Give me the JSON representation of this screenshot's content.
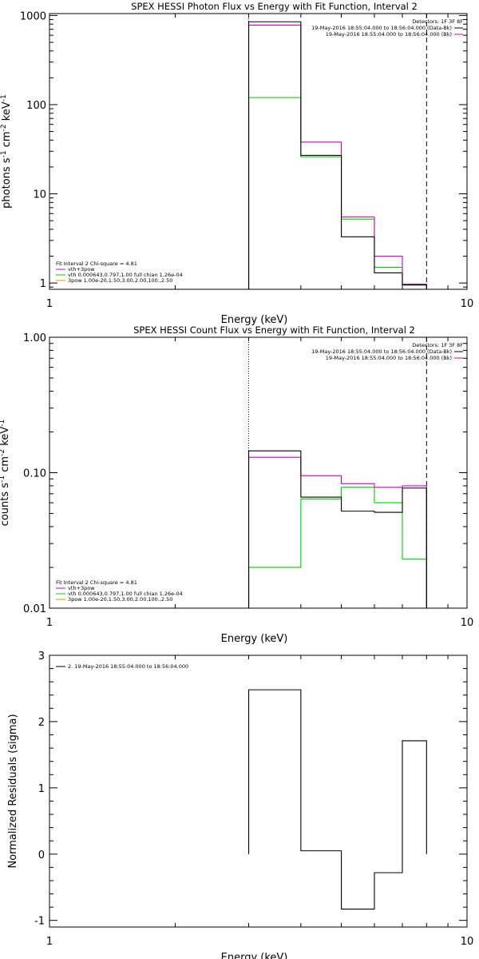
{
  "chart_data": [
    {
      "type": "line",
      "title": "SPEX HESSI Photon Flux vs Energy with Fit Function, Interval 2",
      "xlabel": "Energy (keV)",
      "ylabel": "photons s-1 cm-2 keV-1",
      "xscale": "log",
      "yscale": "log",
      "xlim": [
        1,
        10
      ],
      "ylim": [
        0.85,
        1050
      ],
      "xticks": [
        "1",
        "10"
      ],
      "yticks": [
        "1",
        "10",
        "100",
        "1000"
      ],
      "grid": false,
      "edges": [
        3.0,
        4.0,
        5.0,
        6.0,
        7.0,
        8.0
      ],
      "vlines": [
        {
          "x": 3.0,
          "style": "dotted",
          "color": "#000000"
        },
        {
          "x": 8.0,
          "style": "dashed",
          "color": "#000000"
        }
      ],
      "series": [
        {
          "name": "Data",
          "color": "#000000",
          "values": [
            850,
            27,
            3.3,
            1.3,
            0.95
          ]
        },
        {
          "name": "vth+3pow",
          "color": "#cc00cc",
          "values": [
            780,
            38,
            5.5,
            2.0,
            0.97
          ]
        },
        {
          "name": "vth",
          "color": "#00cc00",
          "values": [
            120,
            26,
            5.2,
            1.5,
            0.95
          ]
        }
      ],
      "legend_tr": {
        "header": "Detectors: 1F 3F 8F",
        "items": [
          {
            "text": "19-May-2016 18:55:04.000 to 18:56:04.000 (Data-Bk)",
            "color": "#000000"
          },
          {
            "text": "19-May-2016 18:55:04.000 to 18:56:04.000 (Bk)",
            "color": "#cc00cc"
          }
        ]
      },
      "legend_bl": {
        "header": "Fit Interval 2   Chi-square = 4.81",
        "items": [
          {
            "text": "vth+3pow",
            "color": "#cc00cc"
          },
          {
            "text": "vth 0.000643,0.797,1.00  full chian 1.26e-04",
            "color": "#00cc00"
          },
          {
            "text": "3pow 1.00e-20,1.50,3.00,2.00,100.,2.50",
            "color": "#cc9900"
          }
        ]
      }
    },
    {
      "type": "line",
      "title": "SPEX HESSI Count Flux vs Energy with Fit Function, Interval 2",
      "xlabel": "Energy (keV)",
      "ylabel": "counts s-1 cm-2 keV-1",
      "xscale": "log",
      "yscale": "log",
      "xlim": [
        1,
        10
      ],
      "ylim": [
        0.01,
        1.0
      ],
      "xticks": [
        "1",
        "10"
      ],
      "yticks": [
        "0.01",
        "0.10",
        "1.00"
      ],
      "grid": false,
      "edges": [
        3.0,
        4.0,
        5.0,
        6.0,
        7.0,
        8.0
      ],
      "vlines": [
        {
          "x": 3.0,
          "style": "dotted",
          "color": "#000000"
        },
        {
          "x": 8.0,
          "style": "dashed",
          "color": "#000000"
        }
      ],
      "series": [
        {
          "name": "Data",
          "color": "#000000",
          "values": [
            0.145,
            0.066,
            0.052,
            0.051,
            0.077
          ]
        },
        {
          "name": "vth+3pow",
          "color": "#cc00cc",
          "values": [
            0.13,
            0.095,
            0.083,
            0.078,
            0.08
          ]
        },
        {
          "name": "vth",
          "color": "#00cc00",
          "values": [
            0.02,
            0.064,
            0.078,
            0.06,
            0.023
          ]
        }
      ],
      "legend_tr": {
        "header": "Detectors: 1F 3F 8F",
        "items": [
          {
            "text": "19-May-2016 18:55:04.000 to 18:56:04.000 (Data-Bk)",
            "color": "#000000"
          },
          {
            "text": "19-May-2016 18:55:04.000 to 18:56:04.000 (Bk)",
            "color": "#cc00cc"
          }
        ]
      },
      "legend_bl": {
        "header": "Fit Interval 2   Chi-square = 4.81",
        "items": [
          {
            "text": "vth+3pow",
            "color": "#cc00cc"
          },
          {
            "text": "vth 0.000643,0.797,1.00  full chian 1.26e-04",
            "color": "#00cc00"
          },
          {
            "text": "3pow 1.00e-20,1.50,3.00,2.00,100.,2.50",
            "color": "#cc9900"
          }
        ]
      }
    },
    {
      "type": "line",
      "title": "",
      "xlabel": "Energy (keV)",
      "ylabel": "Normalized Residuals (sigma)",
      "xscale": "log",
      "yscale": "linear",
      "xlim": [
        1,
        10
      ],
      "ylim": [
        -1.1,
        3.0
      ],
      "xticks": [
        "1",
        "10"
      ],
      "yticks": [
        "-1",
        "0",
        "1",
        "2",
        "3"
      ],
      "grid": false,
      "edges": [
        3.0,
        4.0,
        5.0,
        6.0,
        7.0,
        8.0
      ],
      "vlines": [],
      "series": [
        {
          "name": "2. 19-May-2016 18:55:04.000 to 18:56:04.000",
          "color": "#000000",
          "values": [
            2.48,
            0.05,
            -0.83,
            -0.28,
            1.71
          ]
        }
      ],
      "legend_tr": null,
      "legend_bl": null,
      "legend_tl": {
        "items": [
          {
            "text": "2. 19-May-2016 18:55:04.000 to 18:56:04.000",
            "color": "#000000"
          }
        ]
      }
    }
  ]
}
